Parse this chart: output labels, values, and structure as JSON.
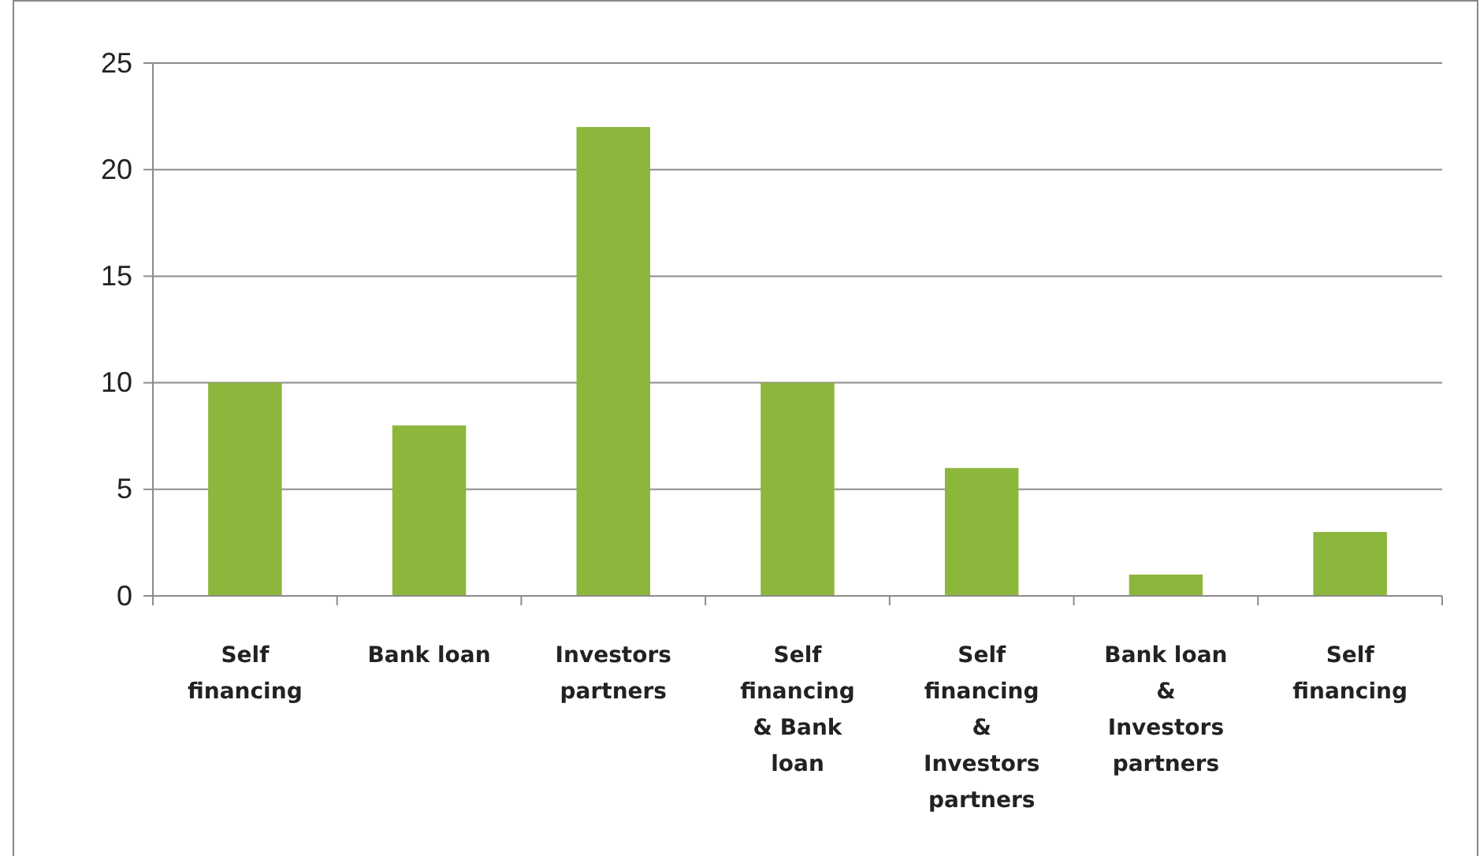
{
  "chart_data": {
    "type": "bar",
    "categories": [
      "Self financing",
      "Bank loan",
      "Investors partners",
      "Self financing & Bank loan",
      "Self financing & Investors partners",
      "Bank loan & Investors partners",
      "Self financing"
    ],
    "values": [
      10,
      8,
      22,
      10,
      6,
      1,
      3
    ],
    "color": "#8db63c",
    "ylim": [
      0,
      25
    ],
    "yticks": [
      0,
      5,
      10,
      15,
      20,
      25
    ],
    "grid": "y"
  }
}
